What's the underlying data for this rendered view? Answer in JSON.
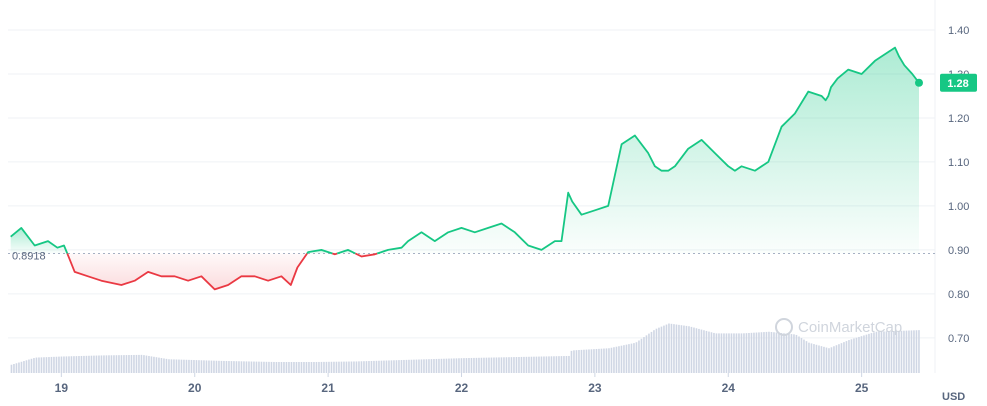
{
  "chart_data": {
    "type": "line",
    "x_ticks": [
      "19",
      "20",
      "21",
      "22",
      "23",
      "24",
      "25"
    ],
    "y_ticks": [
      "1.40",
      "1.30",
      "1.20",
      "1.10",
      "1.00",
      "0.90",
      "0.80",
      "0.70"
    ],
    "ylim": [
      0.62,
      1.45
    ],
    "xlim": [
      18.6,
      25.55
    ],
    "baseline": 0.8918,
    "baseline_label": "0.8918",
    "current_price": 1.28,
    "current_price_label": "1.28",
    "unit": "USD",
    "watermark": "CoinMarketCap",
    "colors": {
      "up": "#16c784",
      "down": "#ea3943",
      "volume": "#cfd6e4",
      "grid": "#eff2f5",
      "label_bg": "#16c784"
    },
    "price_series": {
      "x": [
        18.62,
        18.7,
        18.8,
        18.9,
        18.97,
        19.02,
        19.06,
        19.1,
        19.2,
        19.3,
        19.45,
        19.55,
        19.65,
        19.75,
        19.85,
        19.95,
        20.05,
        20.15,
        20.25,
        20.35,
        20.45,
        20.55,
        20.65,
        20.72,
        20.77,
        20.85,
        20.95,
        21.05,
        21.15,
        21.25,
        21.35,
        21.45,
        21.55,
        21.6,
        21.7,
        21.8,
        21.9,
        22.0,
        22.1,
        22.2,
        22.3,
        22.4,
        22.5,
        22.6,
        22.7,
        22.75,
        22.8,
        22.83,
        22.9,
        23.0,
        23.1,
        23.2,
        23.3,
        23.4,
        23.45,
        23.5,
        23.55,
        23.6,
        23.7,
        23.8,
        23.9,
        24.0,
        24.05,
        24.1,
        24.2,
        24.3,
        24.4,
        24.5,
        24.6,
        24.7,
        24.73,
        24.75,
        24.77,
        24.82,
        24.9,
        25.0,
        25.1,
        25.2,
        25.25,
        25.28,
        25.32,
        25.38,
        25.43
      ],
      "y": [
        0.93,
        0.95,
        0.91,
        0.92,
        0.905,
        0.91,
        0.88,
        0.85,
        0.84,
        0.83,
        0.82,
        0.83,
        0.85,
        0.84,
        0.84,
        0.83,
        0.84,
        0.81,
        0.82,
        0.84,
        0.84,
        0.83,
        0.84,
        0.82,
        0.86,
        0.895,
        0.9,
        0.89,
        0.9,
        0.885,
        0.89,
        0.9,
        0.905,
        0.92,
        0.94,
        0.92,
        0.94,
        0.95,
        0.94,
        0.95,
        0.96,
        0.94,
        0.91,
        0.9,
        0.92,
        0.92,
        1.03,
        1.01,
        0.98,
        0.99,
        1.0,
        1.14,
        1.16,
        1.12,
        1.09,
        1.08,
        1.08,
        1.09,
        1.13,
        1.15,
        1.12,
        1.09,
        1.08,
        1.09,
        1.08,
        1.1,
        1.18,
        1.21,
        1.26,
        1.25,
        1.24,
        1.25,
        1.27,
        1.29,
        1.31,
        1.3,
        1.33,
        1.35,
        1.36,
        1.34,
        1.32,
        1.3,
        1.28
      ]
    },
    "volume_series": {
      "x": [
        18.62,
        18.8,
        19.0,
        19.3,
        19.6,
        19.8,
        20.2,
        20.6,
        20.9,
        21.2,
        21.6,
        22.0,
        22.4,
        22.8,
        22.82,
        23.1,
        23.3,
        23.45,
        23.55,
        23.7,
        23.9,
        24.1,
        24.3,
        24.5,
        24.6,
        24.75,
        24.9,
        25.1,
        25.43
      ],
      "v": [
        0.15,
        0.28,
        0.3,
        0.32,
        0.33,
        0.25,
        0.22,
        0.2,
        0.2,
        0.21,
        0.24,
        0.27,
        0.29,
        0.31,
        0.41,
        0.45,
        0.55,
        0.8,
        0.9,
        0.85,
        0.72,
        0.72,
        0.75,
        0.7,
        0.55,
        0.45,
        0.6,
        0.75,
        0.78
      ]
    }
  }
}
